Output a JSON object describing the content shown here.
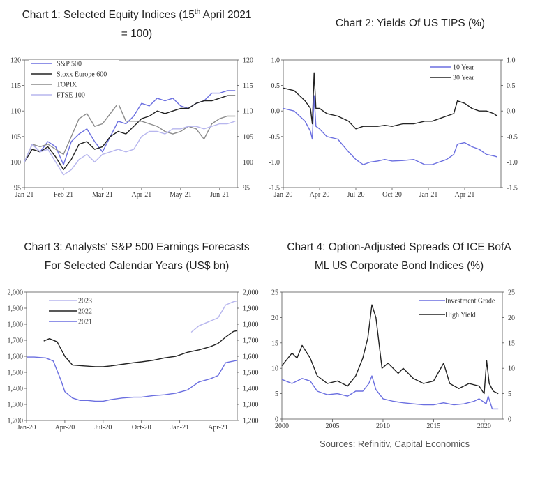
{
  "titles": {
    "c1_line1_pre": "Chart 1: Selected Equity Indices (15",
    "c1_sup": "th",
    "c1_line1_post": " April 2021",
    "c1_line2": "= 100)",
    "c2": "Chart 2: Yields Of US TIPS (%)",
    "c3_line1": "Chart 3: Analysts' S&P 500 Earnings Forecasts",
    "c3_line2": "For Selected Calendar Years (US$ bn)",
    "c4_line1": "Chart 4: Option-Adjusted Spreads Of ICE BofA",
    "c4_line2": "ML US Corporate Bond Indices (%)"
  },
  "source": "Sources: Refinitiv, Capital Economics",
  "chart_data": [
    {
      "id": "c1",
      "type": "line",
      "title": "Chart 1: Selected Equity Indices (15th April 2021 = 100)",
      "ylim": [
        95,
        120
      ],
      "yticks": [
        "95",
        "100",
        "105",
        "110",
        "115",
        "120"
      ],
      "xlim": [
        0,
        5.45
      ],
      "xticks": [
        {
          "x": 0,
          "label": "Jan-21"
        },
        {
          "x": 1,
          "label": "Feb-21"
        },
        {
          "x": 2,
          "label": "Mar-21"
        },
        {
          "x": 3,
          "label": "Apr-21"
        },
        {
          "x": 4,
          "label": "May-21"
        },
        {
          "x": 5,
          "label": "Jun-21"
        }
      ],
      "legend": "top-left",
      "series": [
        {
          "name": "S&P 500",
          "color": "#6b6fe0",
          "x": [
            0,
            0.2,
            0.4,
            0.6,
            0.8,
            1.0,
            1.2,
            1.4,
            1.6,
            1.8,
            2.0,
            2.2,
            2.4,
            2.6,
            2.8,
            3.0,
            3.2,
            3.4,
            3.6,
            3.8,
            4.0,
            4.2,
            4.4,
            4.6,
            4.8,
            5.0,
            5.2,
            5.4
          ],
          "y": [
            100,
            103.5,
            102,
            104,
            103,
            99.5,
            104,
            105.5,
            106.5,
            104,
            102,
            105,
            108,
            107.5,
            109,
            111.5,
            111,
            112.5,
            112,
            112.5,
            111,
            110.5,
            111.5,
            112,
            113.5,
            113.5,
            114,
            114
          ]
        },
        {
          "name": "Stoxx Europe 600",
          "color": "#222222",
          "x": [
            0,
            0.2,
            0.4,
            0.6,
            0.8,
            1.0,
            1.2,
            1.4,
            1.6,
            1.8,
            2.0,
            2.2,
            2.4,
            2.6,
            2.8,
            3.0,
            3.2,
            3.4,
            3.6,
            3.8,
            4.0,
            4.2,
            4.4,
            4.6,
            4.8,
            5.0,
            5.2,
            5.4
          ],
          "y": [
            100,
            102.5,
            102,
            103,
            101,
            98.5,
            100.5,
            103.5,
            104,
            102.5,
            103,
            105,
            106,
            105.5,
            107,
            108.5,
            109,
            110,
            109.5,
            110,
            110.5,
            110.5,
            111.5,
            112,
            112,
            112.5,
            113,
            113
          ]
        },
        {
          "name": "TOPIX",
          "color": "#8c8c8c",
          "x": [
            0,
            0.2,
            0.4,
            0.6,
            0.8,
            1.0,
            1.2,
            1.4,
            1.6,
            1.8,
            2.0,
            2.2,
            2.4,
            2.6,
            2.8,
            3.0,
            3.2,
            3.4,
            3.6,
            3.8,
            4.0,
            4.2,
            4.4,
            4.6,
            4.8,
            5.0,
            5.2,
            5.4
          ],
          "y": [
            100,
            103.5,
            103,
            103.5,
            102.5,
            101.5,
            105,
            108.5,
            109.5,
            107,
            107.5,
            109.5,
            111.5,
            108,
            108,
            108,
            107.5,
            107,
            106,
            105.5,
            106,
            107,
            106.5,
            104.5,
            107.5,
            108.5,
            109,
            109
          ]
        },
        {
          "name": "FTSE 100",
          "color": "#b7b6ee",
          "x": [
            0,
            0.2,
            0.4,
            0.6,
            0.8,
            1.0,
            1.2,
            1.4,
            1.6,
            1.8,
            2.0,
            2.2,
            2.4,
            2.6,
            2.8,
            3.0,
            3.2,
            3.4,
            3.6,
            3.8,
            4.0,
            4.2,
            4.4,
            4.6,
            4.8,
            5.0,
            5.2,
            5.4
          ],
          "y": [
            100,
            103.5,
            102,
            102.5,
            100,
            97.5,
            98.5,
            100.5,
            101.5,
            100,
            101.5,
            102,
            102.5,
            102,
            102.5,
            105,
            106,
            106,
            105.5,
            106.5,
            106.5,
            107,
            107,
            106.5,
            107,
            107.5,
            107.5,
            108
          ]
        }
      ]
    },
    {
      "id": "c2",
      "type": "line",
      "title": "Chart 2: Yields Of US TIPS (%)",
      "ylim": [
        -1.5,
        1.0
      ],
      "yticks": [
        "-1.5",
        "-1.0",
        "-0.5",
        "0.0",
        "0.5",
        "1.0"
      ],
      "xlim": [
        0,
        6.0
      ],
      "xticks": [
        {
          "x": 0,
          "label": "Jan-20"
        },
        {
          "x": 1,
          "label": "Apr-20"
        },
        {
          "x": 2,
          "label": "Jul-20"
        },
        {
          "x": 3,
          "label": "Oct-20"
        },
        {
          "x": 4,
          "label": "Jan-21"
        },
        {
          "x": 5,
          "label": "Apr-21"
        }
      ],
      "legend": "top-right",
      "series": [
        {
          "name": "10 Year",
          "color": "#6b6fe0",
          "x": [
            0,
            0.3,
            0.6,
            0.75,
            0.8,
            0.85,
            0.9,
            1.0,
            1.2,
            1.5,
            1.8,
            2.0,
            2.2,
            2.4,
            2.6,
            2.8,
            3.0,
            3.3,
            3.6,
            3.9,
            4.1,
            4.3,
            4.5,
            4.7,
            4.8,
            5.0,
            5.2,
            5.4,
            5.6,
            5.8,
            5.9
          ],
          "y": [
            0.05,
            0.0,
            -0.2,
            -0.4,
            -0.55,
            0.3,
            -0.3,
            -0.35,
            -0.5,
            -0.55,
            -0.8,
            -0.95,
            -1.05,
            -1.0,
            -0.98,
            -0.95,
            -0.98,
            -0.97,
            -0.95,
            -1.05,
            -1.05,
            -1.0,
            -0.95,
            -0.85,
            -0.65,
            -0.62,
            -0.7,
            -0.75,
            -0.85,
            -0.88,
            -0.9
          ]
        },
        {
          "name": "30 Year",
          "color": "#222222",
          "x": [
            0,
            0.3,
            0.6,
            0.75,
            0.8,
            0.85,
            0.9,
            1.0,
            1.2,
            1.5,
            1.8,
            2.0,
            2.2,
            2.4,
            2.6,
            2.8,
            3.0,
            3.3,
            3.6,
            3.9,
            4.1,
            4.3,
            4.5,
            4.7,
            4.8,
            5.0,
            5.2,
            5.4,
            5.6,
            5.8,
            5.9
          ],
          "y": [
            0.45,
            0.4,
            0.2,
            0.05,
            -0.25,
            0.75,
            0.05,
            0.05,
            -0.05,
            -0.1,
            -0.2,
            -0.35,
            -0.3,
            -0.3,
            -0.3,
            -0.28,
            -0.3,
            -0.25,
            -0.25,
            -0.2,
            -0.2,
            -0.15,
            -0.1,
            -0.05,
            0.2,
            0.15,
            0.05,
            0.0,
            0.0,
            -0.05,
            -0.1
          ]
        }
      ]
    },
    {
      "id": "c3",
      "type": "line",
      "title": "Chart 3: Analysts' S&P 500 Earnings Forecasts For Selected Calendar Years (US$ bn)",
      "ylim": [
        1200,
        2000
      ],
      "yticks": [
        "1,200",
        "1,300",
        "1,400",
        "1,500",
        "1,600",
        "1,700",
        "1,800",
        "1,900",
        "2,000"
      ],
      "xlim": [
        0,
        5.5
      ],
      "xticks": [
        {
          "x": 0,
          "label": "Jan-20"
        },
        {
          "x": 1,
          "label": "Apr-20"
        },
        {
          "x": 2,
          "label": "Jul-20"
        },
        {
          "x": 3,
          "label": "Oct-20"
        },
        {
          "x": 4,
          "label": "Jan-21"
        },
        {
          "x": 5,
          "label": "Apr-21"
        }
      ],
      "legend": "top-left",
      "series": [
        {
          "name": "2023",
          "color": "#b7b6ee",
          "x": [
            4.3,
            4.5,
            4.7,
            4.8,
            4.9,
            5.0,
            5.1,
            5.2,
            5.3,
            5.4,
            5.5
          ],
          "y": [
            1750,
            1790,
            1810,
            1820,
            1830,
            1840,
            1880,
            1920,
            1930,
            1940,
            1945
          ]
        },
        {
          "name": "2022",
          "color": "#222222",
          "x": [
            0.45,
            0.6,
            0.8,
            1.0,
            1.2,
            1.5,
            1.8,
            2.0,
            2.2,
            2.5,
            2.8,
            3.0,
            3.3,
            3.6,
            3.9,
            4.2,
            4.5,
            4.8,
            5.0,
            5.2,
            5.4,
            5.5
          ],
          "y": [
            1695,
            1710,
            1690,
            1600,
            1545,
            1540,
            1535,
            1535,
            1540,
            1550,
            1560,
            1565,
            1575,
            1590,
            1600,
            1625,
            1640,
            1660,
            1680,
            1720,
            1755,
            1760
          ]
        },
        {
          "name": "2021",
          "color": "#6b6fe0",
          "x": [
            0,
            0.2,
            0.5,
            0.7,
            0.9,
            1.0,
            1.2,
            1.4,
            1.6,
            1.8,
            2.0,
            2.2,
            2.5,
            2.8,
            3.0,
            3.3,
            3.6,
            3.9,
            4.2,
            4.5,
            4.8,
            5.0,
            5.2,
            5.4,
            5.5
          ],
          "y": [
            1595,
            1595,
            1590,
            1570,
            1450,
            1380,
            1340,
            1325,
            1325,
            1320,
            1320,
            1330,
            1340,
            1345,
            1345,
            1355,
            1360,
            1370,
            1390,
            1440,
            1460,
            1480,
            1560,
            1570,
            1575
          ]
        }
      ]
    },
    {
      "id": "c4",
      "type": "line",
      "title": "Chart 4: Option-Adjusted Spreads Of ICE BofA ML US Corporate Bond Indices (%)",
      "ylim": [
        0,
        25
      ],
      "yticks": [
        "0",
        "5",
        "10",
        "15",
        "20",
        "25"
      ],
      "xlim": [
        2000,
        2021.8
      ],
      "xticks": [
        {
          "x": 2000,
          "label": "2000"
        },
        {
          "x": 2005,
          "label": "2005"
        },
        {
          "x": 2010,
          "label": "2010"
        },
        {
          "x": 2015,
          "label": "2015"
        },
        {
          "x": 2020,
          "label": "2020"
        }
      ],
      "legend": "top-right",
      "series": [
        {
          "name": "Investment Grade",
          "color": "#6b6fe0",
          "x": [
            2000,
            2001,
            2002,
            2002.8,
            2003.5,
            2004.5,
            2005.5,
            2006.5,
            2007.3,
            2008,
            2008.6,
            2008.9,
            2009.3,
            2010,
            2011,
            2012,
            2013,
            2014,
            2015,
            2016,
            2016.5,
            2017,
            2018,
            2019,
            2019.5,
            2020.2,
            2020.4,
            2020.8,
            2021.4
          ],
          "y": [
            7.8,
            7.0,
            8.0,
            7.5,
            5.5,
            4.8,
            5.0,
            4.5,
            5.5,
            5.5,
            7.0,
            8.5,
            5.8,
            4.0,
            3.5,
            3.2,
            3.0,
            2.8,
            2.8,
            3.2,
            3.0,
            2.8,
            3.0,
            3.5,
            4.0,
            3.0,
            4.5,
            2.0,
            2.0
          ]
        },
        {
          "name": "High Yield",
          "color": "#222222",
          "x": [
            2000,
            2001,
            2001.5,
            2002,
            2002.8,
            2003.5,
            2004.5,
            2005.5,
            2006.5,
            2007.3,
            2008,
            2008.5,
            2008.9,
            2009.3,
            2009.9,
            2010.5,
            2011.5,
            2012,
            2013,
            2014,
            2015,
            2016,
            2016.6,
            2017.5,
            2018.5,
            2019.5,
            2020.0,
            2020.25,
            2020.5,
            2020.9,
            2021.4
          ],
          "y": [
            10.5,
            13.0,
            12.0,
            14.5,
            12.0,
            8.5,
            7.0,
            7.5,
            6.5,
            8.5,
            12.0,
            16.0,
            22.5,
            20.0,
            10.0,
            11.0,
            9.0,
            10.0,
            8.0,
            7.0,
            7.5,
            11.0,
            7.0,
            6.0,
            7.0,
            6.5,
            5.0,
            11.5,
            7.0,
            5.5,
            5.0
          ]
        }
      ]
    }
  ]
}
